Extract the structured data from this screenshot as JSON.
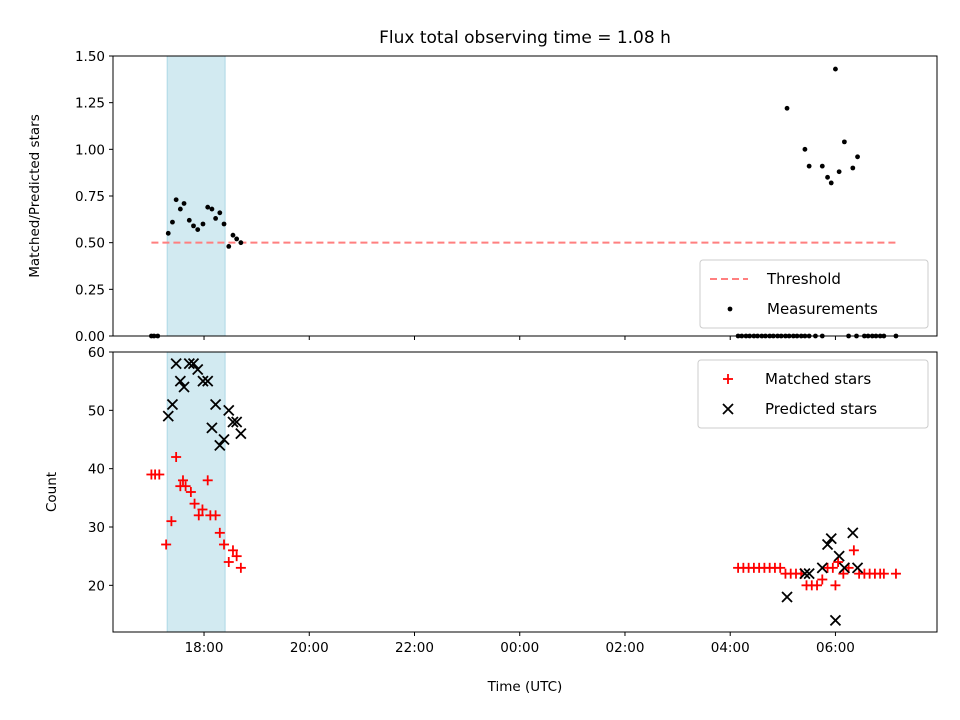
{
  "chart_data": {
    "type": "scatter",
    "title": "Flux total observing time = 1.08 h",
    "xlabel": "Time (UTC)",
    "x_unit": "hours (UTC, continuing past midnight)",
    "xlim": [
      16.27,
      7.93
    ],
    "x_ticks": [
      {
        "value": 18,
        "label": "18:00"
      },
      {
        "value": 20,
        "label": "20:00"
      },
      {
        "value": 22,
        "label": "22:00"
      },
      {
        "value": 0,
        "label": "00:00"
      },
      {
        "value": 2,
        "label": "02:00"
      },
      {
        "value": 4,
        "label": "04:00"
      },
      {
        "value": 6,
        "label": "06:00"
      }
    ],
    "shaded_span": {
      "start": 17.3,
      "end": 18.4,
      "color": "#add8e6"
    },
    "panels": [
      {
        "id": "ratio",
        "ylabel": "Matched/Predicted stars",
        "ylim": [
          0,
          1.5
        ],
        "y_ticks": [
          "0.00",
          "0.25",
          "0.50",
          "0.75",
          "1.00",
          "1.25",
          "1.50"
        ],
        "legend_position": "lower-right",
        "threshold": {
          "name": "Threshold",
          "value": 0.5,
          "x_start": 17.0,
          "x_end": 7.2,
          "color": "#ff7f7f",
          "style": "dashed"
        },
        "series": [
          {
            "name": "Measurements",
            "marker": "dot",
            "color": "#000000",
            "points": [
              [
                17.0,
                0.0
              ],
              [
                17.05,
                0.0
              ],
              [
                17.12,
                0.0
              ],
              [
                17.32,
                0.55
              ],
              [
                17.4,
                0.61
              ],
              [
                17.47,
                0.73
              ],
              [
                17.55,
                0.68
              ],
              [
                17.62,
                0.71
              ],
              [
                17.72,
                0.62
              ],
              [
                17.8,
                0.59
              ],
              [
                17.88,
                0.57
              ],
              [
                17.98,
                0.6
              ],
              [
                18.07,
                0.69
              ],
              [
                18.15,
                0.68
              ],
              [
                18.22,
                0.63
              ],
              [
                18.3,
                0.66
              ],
              [
                18.38,
                0.6
              ],
              [
                18.47,
                0.48
              ],
              [
                18.55,
                0.54
              ],
              [
                18.62,
                0.52
              ],
              [
                18.7,
                0.5
              ],
              [
                4.15,
                0.0
              ],
              [
                4.22,
                0.0
              ],
              [
                4.3,
                0.0
              ],
              [
                4.37,
                0.0
              ],
              [
                4.45,
                0.0
              ],
              [
                4.52,
                0.0
              ],
              [
                4.6,
                0.0
              ],
              [
                4.67,
                0.0
              ],
              [
                4.75,
                0.0
              ],
              [
                4.82,
                0.0
              ],
              [
                4.9,
                0.0
              ],
              [
                4.97,
                0.0
              ],
              [
                5.05,
                0.0
              ],
              [
                5.12,
                0.0
              ],
              [
                5.2,
                0.0
              ],
              [
                5.27,
                0.0
              ],
              [
                5.35,
                0.0
              ],
              [
                5.42,
                0.0
              ],
              [
                5.5,
                0.0
              ],
              [
                5.62,
                0.0
              ],
              [
                5.75,
                0.0
              ],
              [
                5.08,
                1.22
              ],
              [
                5.42,
                1.0
              ],
              [
                5.5,
                0.91
              ],
              [
                5.75,
                0.91
              ],
              [
                5.85,
                0.85
              ],
              [
                5.92,
                0.82
              ],
              [
                6.0,
                1.43
              ],
              [
                6.07,
                0.88
              ],
              [
                6.17,
                1.04
              ],
              [
                6.33,
                0.9
              ],
              [
                6.42,
                0.96
              ],
              [
                6.25,
                0.0
              ],
              [
                6.4,
                0.0
              ],
              [
                6.55,
                0.0
              ],
              [
                6.62,
                0.0
              ],
              [
                6.7,
                0.0
              ],
              [
                6.77,
                0.0
              ],
              [
                6.85,
                0.0
              ],
              [
                6.92,
                0.0
              ],
              [
                7.15,
                0.0
              ]
            ]
          }
        ]
      },
      {
        "id": "count",
        "ylabel": "Count",
        "ylim": [
          12,
          60
        ],
        "y_ticks": [
          "20",
          "30",
          "40",
          "50",
          "60"
        ],
        "legend_position": "upper-right",
        "series": [
          {
            "name": "Matched stars",
            "marker": "plus",
            "color": "#ff0000",
            "points": [
              [
                17.0,
                39
              ],
              [
                17.07,
                39
              ],
              [
                17.15,
                39
              ],
              [
                17.28,
                27
              ],
              [
                17.38,
                31
              ],
              [
                17.47,
                42
              ],
              [
                17.55,
                37
              ],
              [
                17.6,
                38
              ],
              [
                17.65,
                37
              ],
              [
                17.75,
                36
              ],
              [
                17.82,
                34
              ],
              [
                17.9,
                32
              ],
              [
                17.97,
                33
              ],
              [
                18.07,
                38
              ],
              [
                18.12,
                32
              ],
              [
                18.22,
                32
              ],
              [
                18.3,
                29
              ],
              [
                18.38,
                27
              ],
              [
                18.47,
                24
              ],
              [
                18.55,
                26
              ],
              [
                18.62,
                25
              ],
              [
                18.7,
                23
              ],
              [
                4.15,
                23
              ],
              [
                4.25,
                23
              ],
              [
                4.35,
                23
              ],
              [
                4.45,
                23
              ],
              [
                4.55,
                23
              ],
              [
                4.65,
                23
              ],
              [
                4.75,
                23
              ],
              [
                4.85,
                23
              ],
              [
                4.95,
                23
              ],
              [
                5.05,
                22
              ],
              [
                5.15,
                22
              ],
              [
                5.25,
                22
              ],
              [
                5.35,
                22
              ],
              [
                5.45,
                20
              ],
              [
                5.55,
                20
              ],
              [
                5.65,
                20
              ],
              [
                5.75,
                21
              ],
              [
                5.85,
                23
              ],
              [
                5.95,
                23
              ],
              [
                6.0,
                20
              ],
              [
                6.05,
                24
              ],
              [
                6.15,
                22
              ],
              [
                6.25,
                23
              ],
              [
                6.35,
                26
              ],
              [
                6.45,
                22
              ],
              [
                6.55,
                22
              ],
              [
                6.65,
                22
              ],
              [
                6.75,
                22
              ],
              [
                6.85,
                22
              ],
              [
                6.92,
                22
              ],
              [
                7.15,
                22
              ]
            ]
          },
          {
            "name": "Predicted stars",
            "marker": "x",
            "color": "#000000",
            "points": [
              [
                17.32,
                49
              ],
              [
                17.4,
                51
              ],
              [
                17.47,
                58
              ],
              [
                17.55,
                55
              ],
              [
                17.62,
                54
              ],
              [
                17.72,
                58
              ],
              [
                17.8,
                58
              ],
              [
                17.88,
                57
              ],
              [
                17.98,
                55
              ],
              [
                18.07,
                55
              ],
              [
                18.15,
                47
              ],
              [
                18.22,
                51
              ],
              [
                18.3,
                44
              ],
              [
                18.38,
                45
              ],
              [
                18.47,
                50
              ],
              [
                18.55,
                48
              ],
              [
                18.62,
                48
              ],
              [
                18.7,
                46
              ],
              [
                5.08,
                18
              ],
              [
                5.42,
                22
              ],
              [
                5.5,
                22
              ],
              [
                5.75,
                23
              ],
              [
                5.85,
                27
              ],
              [
                5.92,
                28
              ],
              [
                6.0,
                14
              ],
              [
                6.07,
                25
              ],
              [
                6.17,
                23
              ],
              [
                6.33,
                29
              ],
              [
                6.42,
                23
              ]
            ]
          }
        ]
      }
    ]
  }
}
